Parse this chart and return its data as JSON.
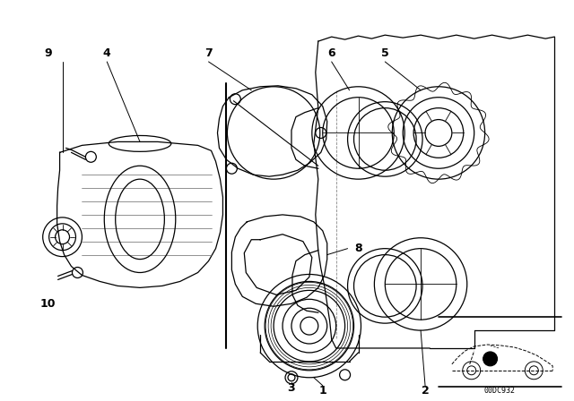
{
  "bg_color": "#ffffff",
  "line_color": "#000000",
  "fig_width": 6.4,
  "fig_height": 4.48,
  "catalog_code": "00DC932",
  "label_fontsize": 9,
  "small_fontsize": 6
}
